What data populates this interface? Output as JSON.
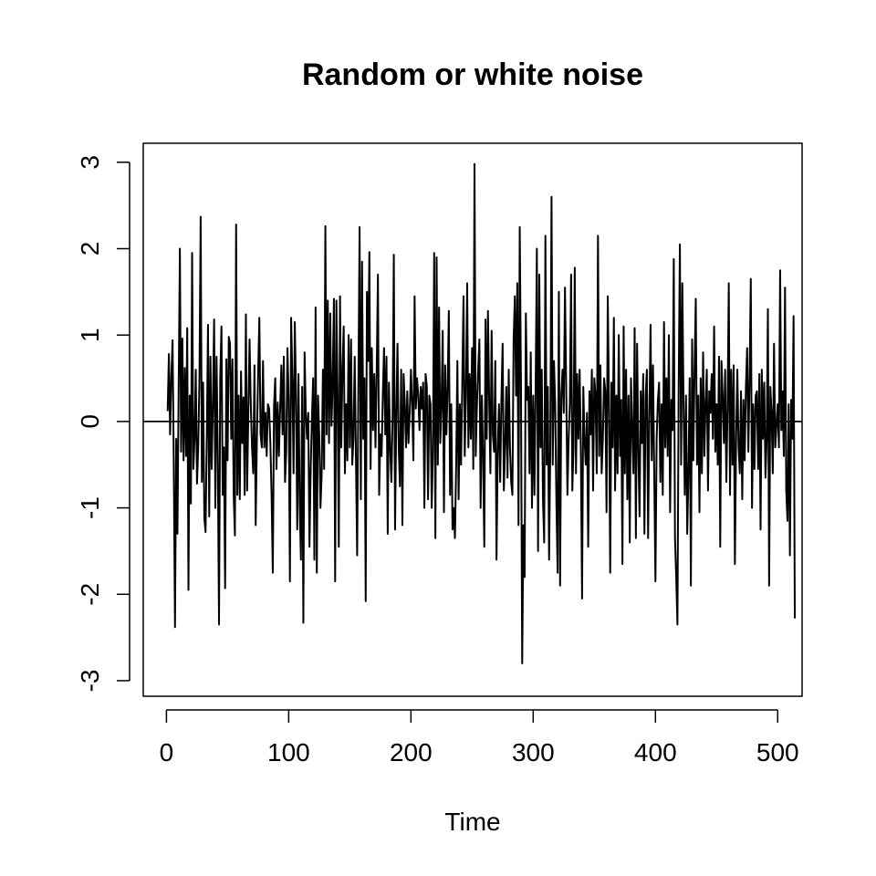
{
  "chart_data": {
    "type": "line",
    "title": "Random or white noise",
    "xlabel": "Time",
    "ylabel": "",
    "xlim": [
      1,
      500
    ],
    "ylim": [
      -3,
      3
    ],
    "xticks": [
      0,
      100,
      200,
      300,
      400,
      500
    ],
    "xtick_labels": [
      "0",
      "100",
      "200",
      "300",
      "400",
      "500"
    ],
    "yticks": [
      -3,
      -2,
      -1,
      0,
      1,
      2,
      3
    ],
    "ytick_labels": [
      "-3",
      "-2",
      "-1",
      "0",
      "1",
      "2",
      "3"
    ],
    "hline": 0,
    "grid": false,
    "series": [
      {
        "name": "white noise",
        "x_start": 1,
        "x_step": 1,
        "values": [
          0.12,
          0.78,
          -0.15,
          0.52,
          0.94,
          -0.48,
          -2.38,
          -0.2,
          -1.3,
          0.4,
          2.0,
          -0.35,
          0.96,
          -0.45,
          0.62,
          -0.4,
          1.08,
          -1.95,
          0.3,
          -0.95,
          1.95,
          -0.55,
          -0.22,
          0.6,
          -0.72,
          -0.3,
          0.5,
          2.37,
          -0.7,
          0.45,
          -1.12,
          -1.28,
          -0.2,
          1.12,
          -1.1,
          0.75,
          -0.55,
          0.2,
          1.18,
          -1.0,
          0.75,
          -0.4,
          -2.35,
          0.5,
          1.1,
          -0.85,
          -0.3,
          -1.93,
          0.72,
          -0.45,
          0.98,
          0.9,
          -0.2,
          0.72,
          -0.84,
          -1.32,
          2.28,
          -0.85,
          0.3,
          -0.9,
          0.58,
          -0.25,
          0.28,
          -0.85,
          1.24,
          -0.8,
          0.1,
          0.95,
          0.2,
          -0.3,
          -0.6,
          0.65,
          -1.2,
          -0.2,
          0.55,
          1.2,
          -0.15,
          -0.3,
          0.7,
          -0.3,
          0.1,
          -0.4,
          0.2,
          0.15,
          -0.25,
          -0.85,
          -1.75,
          0.18,
          0.5,
          -0.55,
          0.22,
          -0.4,
          0.15,
          0.65,
          -0.15,
          0.75,
          -0.7,
          -0.35,
          0.85,
          0.25,
          -1.85,
          1.2,
          0.5,
          -0.6,
          1.15,
          0.3,
          -1.25,
          0.55,
          -0.95,
          -1.6,
          0.4,
          -2.33,
          0.8,
          0.1,
          -0.2,
          0.1,
          -1.45,
          -0.55,
          0.05,
          0.5,
          -1.6,
          1.32,
          -1.75,
          0.3,
          -0.15,
          -1.0,
          -0.6,
          0.6,
          -0.55,
          2.26,
          -0.15,
          1.4,
          -0.25,
          1.25,
          -0.05,
          0.45,
          1.42,
          -1.85,
          1.4,
          0.3,
          -1.45,
          1.45,
          -0.3,
          0.6,
          1.1,
          -0.6,
          0.2,
          -0.45,
          1.0,
          -0.3,
          0.95,
          -0.5,
          -0.2,
          0.75,
          -0.4,
          -1.55,
          0.4,
          2.25,
          -0.9,
          1.85,
          -0.2,
          0.5,
          -2.08,
          1.5,
          0.7,
          1.96,
          -0.55,
          0.85,
          -0.1,
          0.55,
          -0.3,
          0.6,
          1.7,
          -0.85,
          -0.15,
          -0.4,
          0.3,
          0.85,
          -0.15,
          0.75,
          -1.3,
          0.45,
          -0.3,
          -0.7,
          0.05,
          1.93,
          -1.25,
          0.05,
          0.9,
          -0.3,
          -0.75,
          0.6,
          -1.2,
          0.55,
          0.2,
          -0.3,
          0.35,
          -0.25,
          0.1,
          0.6,
          0.2,
          -0.45,
          1.45,
          0.15,
          0.5,
          0.3,
          -0.1,
          0.4,
          0.15,
          0.45,
          -1.0,
          0.55,
          0.4,
          -0.9,
          0.3,
          0.2,
          -1.0,
          -0.35,
          1.95,
          -1.35,
          1.9,
          -0.5,
          1.32,
          -0.25,
          0.2,
          1.05,
          -1.05,
          0.65,
          -0.15,
          0.4,
          1.28,
          -0.85,
          0.2,
          -1.25,
          -1.0,
          -1.35,
          -0.5,
          0.7,
          -0.9,
          0.2,
          -0.5,
          0.45,
          1.45,
          -0.4,
          0.3,
          1.6,
          -0.3,
          0.55,
          -0.2,
          0.85,
          -0.55,
          2.98,
          -0.4,
          0.2,
          0.6,
          0.95,
          -1.0,
          0.3,
          -0.4,
          -1.45,
          1.18,
          -0.2,
          1.28,
          0.25,
          -0.6,
          1.05,
          -0.15,
          -0.35,
          0.7,
          -1.6,
          -0.35,
          0.2,
          -0.7,
          0.25,
          0.9,
          -0.8,
          -0.3,
          0.4,
          -0.65,
          0.6,
          -0.3,
          -0.7,
          -0.85,
          0.95,
          1.45,
          0.3,
          1.6,
          -1.2,
          2.25,
          0.45,
          -2.8,
          -1.2,
          -1.8,
          1.25,
          0.25,
          0.4,
          -0.6,
          0.8,
          -1.0,
          0.3,
          -0.85,
          0.4,
          2.0,
          -1.5,
          1.7,
          -0.3,
          0.6,
          -0.9,
          -1.4,
          2.15,
          -0.5,
          0.4,
          -1.6,
          -0.3,
          2.6,
          -0.5,
          0.7,
          0.2,
          -0.95,
          -1.75,
          1.5,
          -1.9,
          0.3,
          0.6,
          0.1,
          1.55,
          0.4,
          -0.85,
          -0.2,
          0.2,
          1.7,
          -0.8,
          -0.3,
          1.78,
          -0.6,
          0.55,
          -0.2,
          0.6,
          -0.35,
          -2.05,
          0.4,
          -0.2,
          -0.5,
          0.1,
          -1.45,
          0.35,
          -0.15,
          0.6,
          -0.8,
          0.5,
          0.3,
          -0.6,
          2.15,
          -0.4,
          0.65,
          -0.6,
          -0.2,
          0.5,
          0.35,
          -1.05,
          1.45,
          0.25,
          -1.75,
          0.45,
          -0.3,
          1.2,
          -0.8,
          0.3,
          -0.6,
          1.0,
          -0.4,
          0.25,
          -1.65,
          1.1,
          -0.6,
          0.6,
          -0.9,
          0.3,
          -1.4,
          0.5,
          -0.1,
          -0.6,
          1.08,
          -1.35,
          0.9,
          -0.35,
          -1.1,
          0.35,
          -0.25,
          0.55,
          -1.3,
          0.3,
          0.6,
          -1.35,
          0.05,
          1.12,
          -0.45,
          0.65,
          -0.6,
          -1.85,
          -0.2,
          0.25,
          0.45,
          -0.7,
          0.2,
          -0.85,
          1.15,
          -0.3,
          0.5,
          -0.4,
          1.0,
          -1.05,
          0.25,
          -0.1,
          1.88,
          -1.35,
          -1.8,
          -2.35,
          0.4,
          2.05,
          -0.5,
          1.6,
          0.2,
          -0.85,
          0.3,
          -1.3,
          -0.6,
          0.5,
          -1.9,
          0.95,
          -0.45,
          0.6,
          1.42,
          -0.5,
          0.3,
          -1.05,
          0.5,
          -0.6,
          0.8,
          -0.4,
          0.2,
          0.6,
          -0.8,
          0.35,
          0.1,
          0.55,
          -0.2,
          1.1,
          -0.35,
          0.2,
          -0.5,
          0.75,
          -1.45,
          0.7,
          0.3,
          -0.25,
          0.6,
          -0.7,
          0.15,
          1.6,
          -0.85,
          0.6,
          -0.5,
          0.65,
          -1.65,
          -0.2,
          0.6,
          -0.3,
          -0.6,
          0.35,
          -0.9,
          0.25,
          -0.45,
          0.4,
          0.85,
          -0.35,
          0.5,
          1.65,
          -1.0,
          0.2,
          -0.55,
          0.3,
          0.35,
          -0.55,
          0.55,
          -1.25,
          0.6,
          -0.2,
          0.45,
          -0.65,
          -0.2,
          1.3,
          -1.9,
          0.4,
          0.1,
          -0.6,
          0.9,
          -0.3,
          -0.05,
          0.2,
          -0.3,
          1.75,
          -0.1,
          0.35,
          -0.4,
          1.55,
          -0.8,
          -1.15,
          0.2,
          -1.55,
          0.25,
          -0.2,
          1.22,
          -2.28
        ]
      }
    ]
  }
}
